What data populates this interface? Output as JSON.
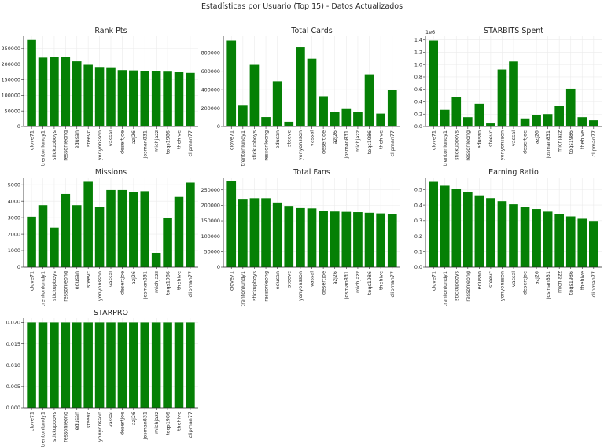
{
  "figure": {
    "suptitle": "Estadísticas por Usuario (Top 15) - Datos Actualizados",
    "bar_color": "#058005",
    "grid": true
  },
  "chart_data": [
    {
      "type": "bar",
      "title": "Rank Pts",
      "categories": [
        "clove71",
        "trentonlundy1",
        "stickupboys",
        "ressonleong",
        "edusan",
        "steevc",
        "yonyonsson",
        "vassal",
        "desertjoe",
        "azj26",
        "josman831",
        "michjazz",
        "toqs1986",
        "thehive",
        "clipman77"
      ],
      "values": [
        278000,
        221000,
        223000,
        223000,
        209000,
        198000,
        191000,
        190000,
        181000,
        180000,
        179000,
        178000,
        176000,
        174000,
        172000
      ],
      "ylim": [
        0,
        290000
      ],
      "yticks": [
        0,
        50000,
        100000,
        150000,
        200000,
        250000
      ],
      "ytick_labels": [
        "0",
        "50000",
        "100000",
        "150000",
        "200000",
        "250000"
      ],
      "offset_text": ""
    },
    {
      "type": "bar",
      "title": "Total Cards",
      "categories": [
        "clove71",
        "trentonlundy1",
        "stickupboys",
        "ressonleong",
        "edusan",
        "steevc",
        "yonyonsson",
        "vassal",
        "desertjoe",
        "azj26",
        "josman831",
        "michjazz",
        "toqs1986",
        "thehive",
        "clipman77"
      ],
      "values": [
        935000,
        228000,
        670000,
        102000,
        492000,
        52000,
        862000,
        737000,
        329000,
        162000,
        190000,
        160000,
        567000,
        140000,
        396000
      ],
      "ylim": [
        0,
        982000
      ],
      "yticks": [
        0,
        200000,
        400000,
        600000,
        800000
      ],
      "ytick_labels": [
        "0",
        "200000",
        "400000",
        "600000",
        "800000"
      ],
      "offset_text": ""
    },
    {
      "type": "bar",
      "title": "STARBITS Spent",
      "categories": [
        "clove71",
        "trentonlundy1",
        "stickupboys",
        "ressonleong",
        "edusan",
        "steevc",
        "yonyonsson",
        "vassal",
        "desertjoe",
        "azj26",
        "josman831",
        "michjazz",
        "toqs1986",
        "thehive",
        "clipman77"
      ],
      "values": [
        1.39,
        0.27,
        0.48,
        0.15,
        0.37,
        0.05,
        0.92,
        1.05,
        0.13,
        0.18,
        0.2,
        0.33,
        0.61,
        0.15,
        0.1
      ],
      "ylim": [
        0,
        1.46
      ],
      "yticks": [
        0,
        0.2,
        0.4,
        0.6,
        0.8,
        1.0,
        1.2,
        1.4
      ],
      "ytick_labels": [
        "0.0",
        "0.2",
        "0.4",
        "0.6",
        "0.8",
        "1.0",
        "1.2",
        "1.4"
      ],
      "offset_text": "1e6"
    },
    {
      "type": "bar",
      "title": "Missions",
      "categories": [
        "clove71",
        "trentonlundy1",
        "stickupboys",
        "ressonleong",
        "edusan",
        "steevc",
        "yonyonsson",
        "vassal",
        "desertjoe",
        "azj26",
        "josman831",
        "michjazz",
        "toqs1986",
        "thehive",
        "clipman77"
      ],
      "values": [
        3060,
        3760,
        2400,
        4440,
        3760,
        5180,
        3640,
        4680,
        4680,
        4560,
        4610,
        860,
        3000,
        4260,
        5130
      ],
      "ylim": [
        0,
        5440
      ],
      "yticks": [
        0,
        1000,
        2000,
        3000,
        4000,
        5000
      ],
      "ytick_labels": [
        "0",
        "1000",
        "2000",
        "3000",
        "4000",
        "5000"
      ],
      "offset_text": ""
    },
    {
      "type": "bar",
      "title": "Total Fans",
      "categories": [
        "clove71",
        "trentonlundy1",
        "stickupboys",
        "ressonleong",
        "edusan",
        "steevc",
        "yonyonsson",
        "vassal",
        "desertjoe",
        "azj26",
        "josman831",
        "michjazz",
        "toqs1986",
        "thehive",
        "clipman77"
      ],
      "values": [
        278000,
        221000,
        223000,
        223000,
        209000,
        198000,
        191000,
        190000,
        181000,
        180000,
        179000,
        178000,
        176000,
        174000,
        172000
      ],
      "ylim": [
        0,
        290000
      ],
      "yticks": [
        0,
        50000,
        100000,
        150000,
        200000,
        250000
      ],
      "ytick_labels": [
        "0",
        "50000",
        "100000",
        "150000",
        "200000",
        "250000"
      ],
      "offset_text": ""
    },
    {
      "type": "bar",
      "title": "Earning Ratio",
      "categories": [
        "clove71",
        "trentonlundy1",
        "stickupboys",
        "ressonleong",
        "edusan",
        "steevc",
        "yonyonsson",
        "vassal",
        "desertjoe",
        "azj26",
        "josman831",
        "michjazz",
        "toqs1986",
        "thehive",
        "clipman77"
      ],
      "values": [
        0.55,
        0.525,
        0.505,
        0.485,
        0.463,
        0.445,
        0.425,
        0.405,
        0.39,
        0.375,
        0.358,
        0.343,
        0.327,
        0.312,
        0.298
      ],
      "ylim": [
        0,
        0.578
      ],
      "yticks": [
        0,
        0.1,
        0.2,
        0.3,
        0.4,
        0.5
      ],
      "ytick_labels": [
        "0.0",
        "0.1",
        "0.2",
        "0.3",
        "0.4",
        "0.5"
      ],
      "offset_text": ""
    },
    {
      "type": "bar",
      "title": "STARPRO",
      "categories": [
        "clove71",
        "trentonlundy1",
        "stickupboys",
        "ressonleong",
        "edusan",
        "steevc",
        "yonyonsson",
        "vassal",
        "desertjoe",
        "azj26",
        "josman831",
        "michjazz",
        "toqs1986",
        "thehive",
        "clipman77"
      ],
      "values": [
        0.02,
        0.02,
        0.02,
        0.02,
        0.02,
        0.02,
        0.02,
        0.02,
        0.02,
        0.02,
        0.02,
        0.02,
        0.02,
        0.02,
        0.02
      ],
      "ylim": [
        0,
        0.021
      ],
      "yticks": [
        0,
        0.005,
        0.01,
        0.015,
        0.02
      ],
      "ytick_labels": [
        "0.000",
        "0.005",
        "0.010",
        "0.015",
        "0.020"
      ],
      "offset_text": ""
    }
  ]
}
